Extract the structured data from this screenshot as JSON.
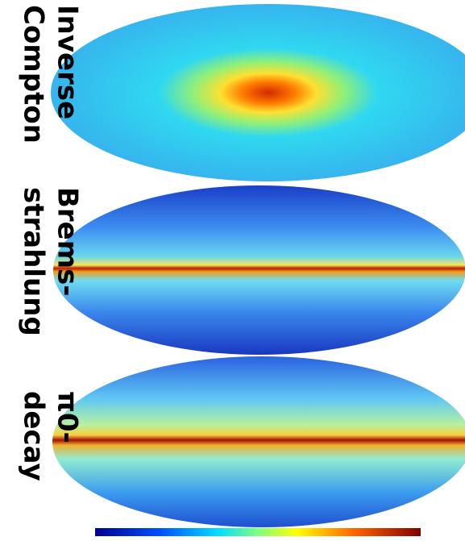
{
  "panels": [
    {
      "label": [
        "Inverse",
        "Compton"
      ]
    },
    {
      "label": [
        "Brems-",
        "strahlung"
      ]
    },
    {
      "label": [
        "π0-",
        "decay"
      ]
    }
  ]
}
